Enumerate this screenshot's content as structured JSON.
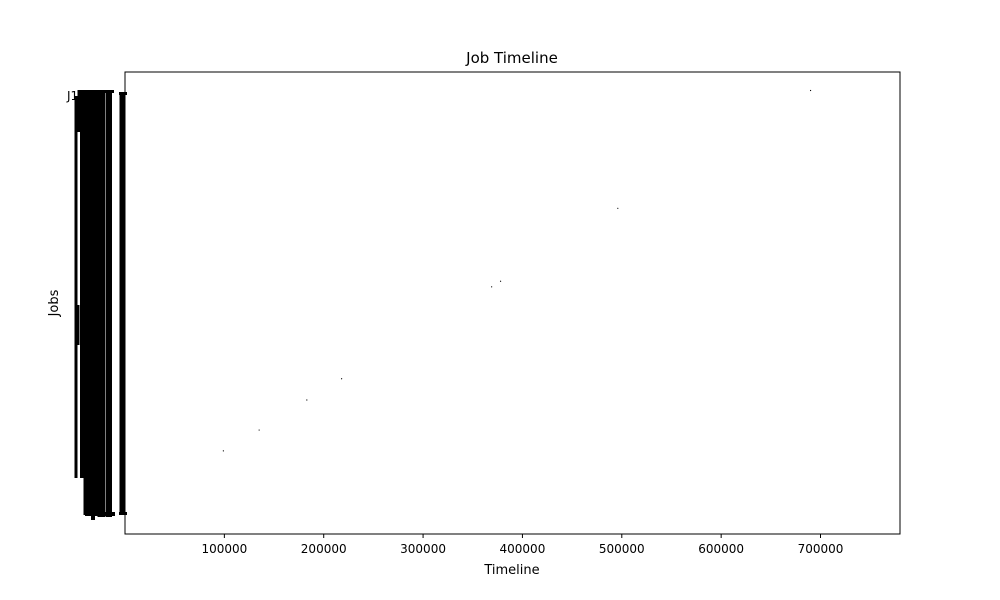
{
  "chart_data": {
    "type": "scatter",
    "title": "Job Timeline",
    "xlabel": "Timeline",
    "ylabel": "Jobs",
    "xlim": [
      0,
      780000
    ],
    "ylim": [
      0,
      1
    ],
    "x_ticks": [
      100000,
      200000,
      300000,
      400000,
      500000,
      600000,
      700000
    ],
    "x_tick_labels": [
      "100000",
      "200000",
      "300000",
      "400000",
      "500000",
      "600000",
      "700000"
    ],
    "y_tick_labels_visible": [
      "J1"
    ],
    "grid": false,
    "legend": "none",
    "mark_color": "#000000",
    "points": [
      {
        "x": 99000,
        "y": 0.18
      },
      {
        "x": 135000,
        "y": 0.225
      },
      {
        "x": 183000,
        "y": 0.29
      },
      {
        "x": 218000,
        "y": 0.336
      },
      {
        "x": 369000,
        "y": 0.535
      },
      {
        "x": 378000,
        "y": 0.547
      },
      {
        "x": 496000,
        "y": 0.705
      },
      {
        "x": 690000,
        "y": 0.96
      }
    ]
  }
}
